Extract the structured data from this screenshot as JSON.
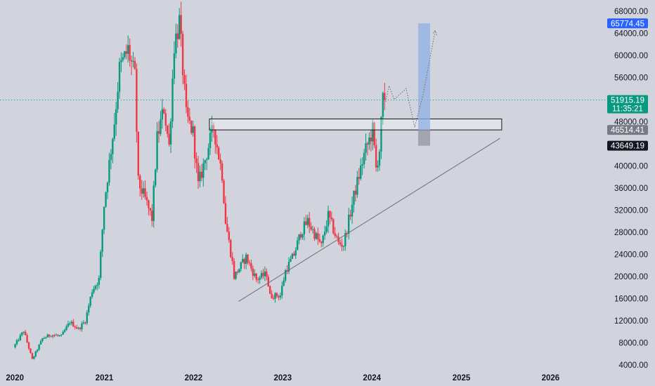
{
  "colors": {
    "background": "#d1d4dc",
    "up": "#089981",
    "down": "#f23645",
    "text": "#131722",
    "line": "#6a6d78",
    "target_box": "#8fb0e6",
    "stop_box": "#9598a1",
    "badge_blue": "#2962ff",
    "badge_green": "#089981",
    "badge_gray": "#787b86",
    "badge_dark": "#131722"
  },
  "chart_data": {
    "type": "candlestick",
    "title": "",
    "x_axis": {
      "type": "date",
      "range": [
        "2019-11-01",
        "2026-08-15"
      ],
      "tick_labels": [
        "2020",
        "2021",
        "2022",
        "2023",
        "2024",
        "2025",
        "2026"
      ],
      "tick_dates": [
        "2020-01-01",
        "2021-01-01",
        "2022-01-01",
        "2023-01-01",
        "2024-01-01",
        "2025-01-01",
        "2026-01-01"
      ]
    },
    "y_axis": {
      "range": [
        2500,
        70000
      ],
      "position": "right",
      "tick_labels": [
        "68000.00",
        "64000.00",
        "60000.00",
        "56000.00",
        "48000.00",
        "40000.00",
        "36000.00",
        "32000.00",
        "28000.00",
        "24000.00",
        "20000.00",
        "16000.00",
        "12000.00",
        "8000.00",
        "4000.00"
      ],
      "tick_values": [
        68000,
        64000,
        60000,
        56000,
        48000,
        40000,
        36000,
        32000,
        28000,
        24000,
        20000,
        16000,
        12000,
        8000,
        4000
      ]
    },
    "price_path": [
      [
        "2019-12-30",
        7200
      ],
      [
        "2020-02-10",
        10200
      ],
      [
        "2020-03-16",
        5000
      ],
      [
        "2020-04-27",
        8800
      ],
      [
        "2020-06-01",
        9500
      ],
      [
        "2020-07-13",
        9200
      ],
      [
        "2020-08-17",
        11800
      ],
      [
        "2020-09-21",
        10500
      ],
      [
        "2020-10-19",
        12000
      ],
      [
        "2020-11-16",
        17500
      ],
      [
        "2020-12-14",
        19500
      ],
      [
        "2021-01-04",
        33000
      ],
      [
        "2021-02-15",
        48000
      ],
      [
        "2021-03-08",
        57500
      ],
      [
        "2021-04-12",
        61000
      ],
      [
        "2021-05-10",
        56000
      ],
      [
        "2021-05-24",
        37000
      ],
      [
        "2021-06-21",
        34000
      ],
      [
        "2021-07-19",
        30500
      ],
      [
        "2021-08-09",
        45000
      ],
      [
        "2021-09-06",
        50500
      ],
      [
        "2021-09-27",
        43500
      ],
      [
        "2021-10-18",
        62000
      ],
      [
        "2021-11-08",
        66000
      ],
      [
        "2021-12-06",
        49000
      ],
      [
        "2022-01-03",
        46000
      ],
      [
        "2022-01-24",
        36500
      ],
      [
        "2022-03-28",
        47000
      ],
      [
        "2022-05-02",
        38500
      ],
      [
        "2022-05-16",
        30000
      ],
      [
        "2022-06-13",
        22500
      ],
      [
        "2022-06-20",
        20000
      ],
      [
        "2022-08-08",
        23500
      ],
      [
        "2022-09-19",
        19500
      ],
      [
        "2022-10-31",
        20500
      ],
      [
        "2022-11-14",
        16500
      ],
      [
        "2022-12-26",
        16600
      ],
      [
        "2023-01-16",
        21000
      ],
      [
        "2023-02-20",
        24000
      ],
      [
        "2023-03-20",
        28000
      ],
      [
        "2023-04-17",
        30000
      ],
      [
        "2023-06-12",
        25500
      ],
      [
        "2023-07-10",
        31000
      ],
      [
        "2023-08-21",
        26000
      ],
      [
        "2023-09-11",
        25800
      ],
      [
        "2023-10-23",
        34500
      ],
      [
        "2023-12-04",
        42000
      ],
      [
        "2024-01-08",
        46500
      ],
      [
        "2024-01-22",
        39500
      ],
      [
        "2024-02-05",
        43000
      ],
      [
        "2024-02-19",
        51915
      ]
    ],
    "annotations": {
      "resistance_zone": {
        "start": "2022-03-07",
        "end": "2025-06-15",
        "low": 46514,
        "high": 48500
      },
      "trendline": {
        "from": [
          "2022-07-04",
          15500
        ],
        "to": [
          "2025-06-08",
          45000
        ]
      },
      "current_price_line": 51915.19,
      "target_box": {
        "start": "2024-07-08",
        "end": "2024-08-26",
        "low": 46514.41,
        "high": 65774.45
      },
      "stop_box": {
        "start": "2024-07-08",
        "end": "2024-08-26",
        "low": 43649.19,
        "high": 46514.41
      },
      "projection_path": [
        [
          "2024-02-26",
          51600
        ],
        [
          "2024-03-11",
          54500
        ],
        [
          "2024-04-01",
          52000
        ],
        [
          "2024-05-20",
          54000
        ],
        [
          "2024-06-24",
          47000
        ],
        [
          "2024-07-29",
          53000
        ],
        [
          "2024-09-16",
          64500
        ]
      ]
    },
    "price_badges": [
      {
        "label": "65774.45",
        "value": 65774.45,
        "style": "blue"
      },
      {
        "label": "51915.19",
        "sublabel": "11:35:21",
        "value": 51915.19,
        "style": "green"
      },
      {
        "label": "46514.41",
        "value": 46514.41,
        "style": "gray"
      },
      {
        "label": "43649.19",
        "value": 43649.19,
        "style": "dark"
      }
    ]
  }
}
